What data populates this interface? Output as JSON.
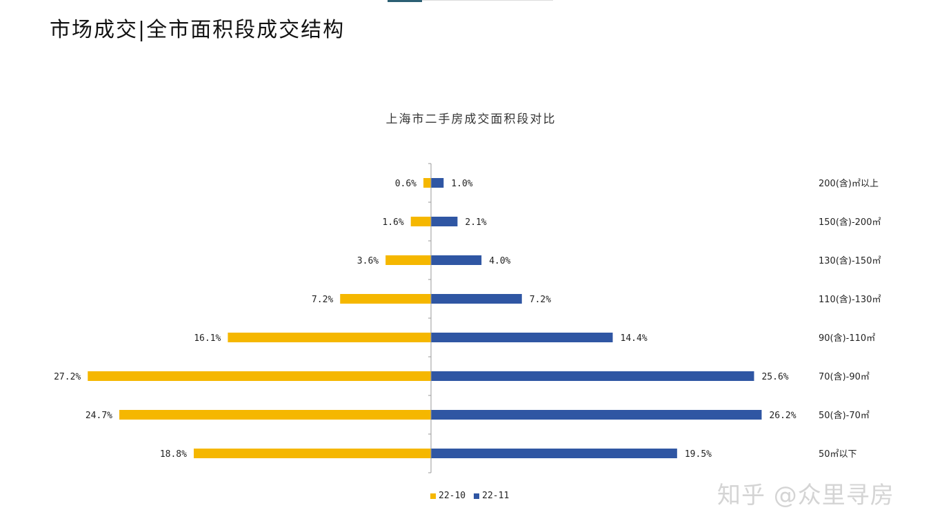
{
  "slide": {
    "title": "市场成交|全市面积段成交结构"
  },
  "watermark": "知乎 @众里寻房",
  "colors": {
    "series_a": "#F5B700",
    "series_b": "#2F56A3",
    "axis": "#9a9a9a",
    "accent": "#2B5F73"
  },
  "chart_data": {
    "type": "bar",
    "orientation": "horizontal-diverging",
    "title": "上海市二手房成交面积段对比",
    "categories": [
      "200(含)㎡以上",
      "150(含)-200㎡",
      "130(含)-150㎡",
      "110(含)-130㎡",
      "90(含)-110㎡",
      "70(含)-90㎡",
      "50(含)-70㎡",
      "50㎡以下"
    ],
    "series": [
      {
        "name": "22-10",
        "values": [
          0.6,
          1.6,
          3.6,
          7.2,
          16.1,
          27.2,
          24.7,
          18.8
        ],
        "labels": [
          "0.6%",
          "1.6%",
          "3.6%",
          "7.2%",
          "16.1%",
          "27.2%",
          "24.7%",
          "18.8%"
        ]
      },
      {
        "name": "22-11",
        "values": [
          1.0,
          2.1,
          4.0,
          7.2,
          14.4,
          25.6,
          26.2,
          19.5
        ],
        "labels": [
          "1.0%",
          "2.1%",
          "4.0%",
          "7.2%",
          "14.4%",
          "25.6%",
          "26.2%",
          "19.5%"
        ]
      }
    ],
    "unit": "%",
    "legend_position": "bottom"
  }
}
